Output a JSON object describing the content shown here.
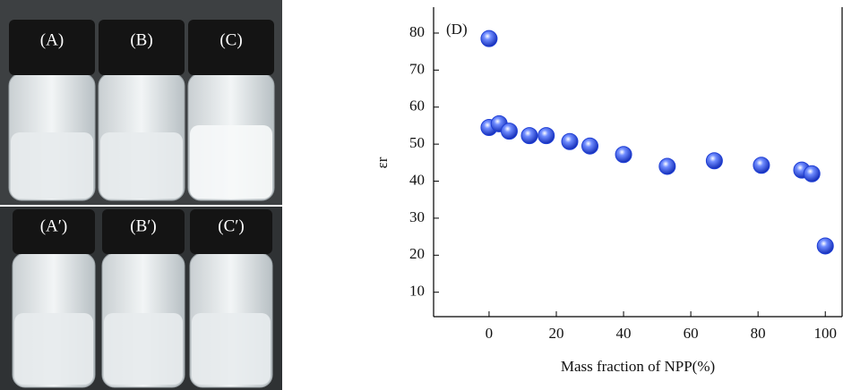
{
  "photo": {
    "labels": [
      "(A)",
      "(B)",
      "(C)",
      "(A′)",
      "(B′)",
      "(C′)"
    ]
  },
  "chart_data": {
    "type": "scatter",
    "annotation": "(D)",
    "xlabel": "Mass fraction of NPP(%)",
    "ylabel": "εr",
    "x": [
      0,
      0,
      3,
      6,
      12,
      17,
      24,
      30,
      40,
      53,
      67,
      81,
      93,
      96,
      100
    ],
    "values": [
      78.5,
      54.5,
      55.5,
      53.5,
      52.3,
      52.3,
      50.7,
      49.5,
      47.2,
      44,
      45.5,
      44.3,
      43,
      42,
      22.5
    ],
    "color": "#1f3fd6",
    "xlim": [
      -16.5,
      105
    ],
    "xticks": [
      0,
      20,
      40,
      60,
      80,
      100
    ],
    "ylim": [
      3.4,
      87
    ],
    "yticks": [
      10,
      20,
      30,
      40,
      50,
      60,
      70,
      80
    ]
  }
}
